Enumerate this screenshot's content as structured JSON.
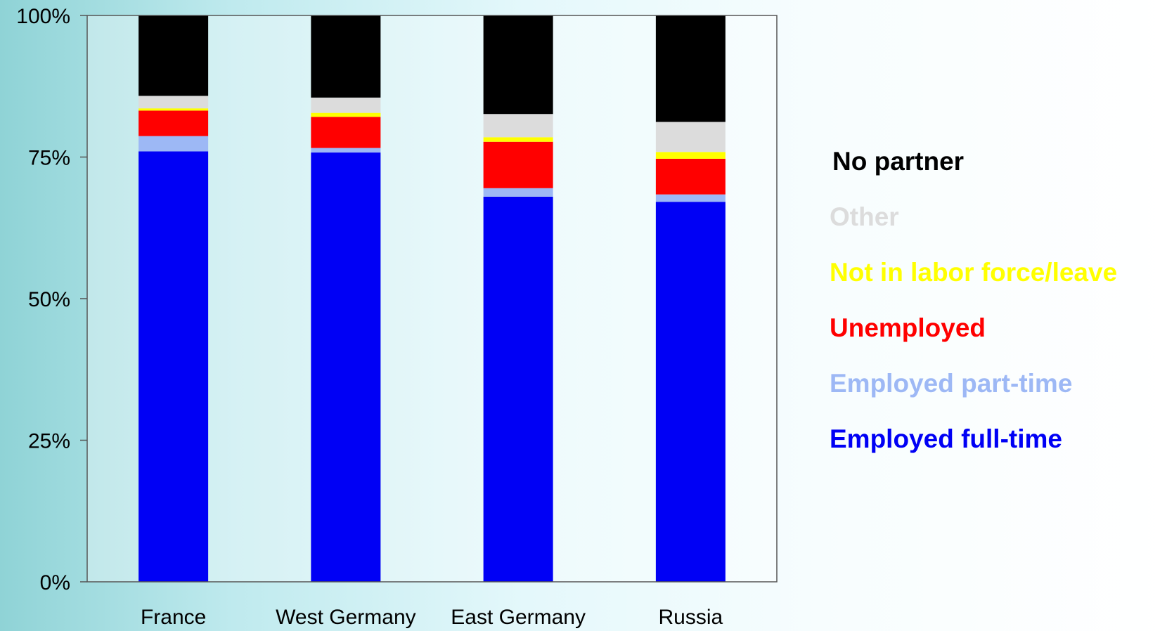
{
  "chart_data": {
    "type": "bar",
    "stacked": true,
    "percent_stacked": true,
    "categories": [
      "France",
      "West Germany",
      "East Germany",
      "Russia"
    ],
    "ylim": [
      0,
      100
    ],
    "yticks": [
      "0%",
      "25%",
      "50%",
      "75%",
      "100%"
    ],
    "ytick_values": [
      0,
      25,
      50,
      75,
      100
    ],
    "series": [
      {
        "name": "Employed full-time",
        "color": "#0000f5",
        "values": [
          76.0,
          75.8,
          68.0,
          67.1
        ]
      },
      {
        "name": "Employed part-time",
        "color": "#9db8f5",
        "values": [
          2.7,
          0.8,
          1.5,
          1.3
        ]
      },
      {
        "name": "Unemployed",
        "color": "#ff0000",
        "values": [
          4.5,
          5.5,
          8.2,
          6.3
        ]
      },
      {
        "name": "Not in labor force/leave",
        "color": "#ffff00",
        "values": [
          0.4,
          0.7,
          0.8,
          1.2
        ]
      },
      {
        "name": "Other",
        "color": "#dcdcdc",
        "values": [
          2.2,
          2.7,
          4.1,
          5.3
        ]
      },
      {
        "name": "No partner",
        "color": "#000000",
        "values": [
          14.2,
          14.5,
          17.4,
          18.8
        ]
      }
    ],
    "legend_position": "right",
    "grid": false
  },
  "legend": [
    {
      "label": "No partner",
      "color": "#000000"
    },
    {
      "label": "Other",
      "color": "#dcdcdc"
    },
    {
      "label": "Not in labor force/leave",
      "color": "#ffff00"
    },
    {
      "label": "Unemployed",
      "color": "#ff0000"
    },
    {
      "label": "Employed part-time",
      "color": "#9db8f5"
    },
    {
      "label": "Employed full-time",
      "color": "#0000f5"
    }
  ]
}
